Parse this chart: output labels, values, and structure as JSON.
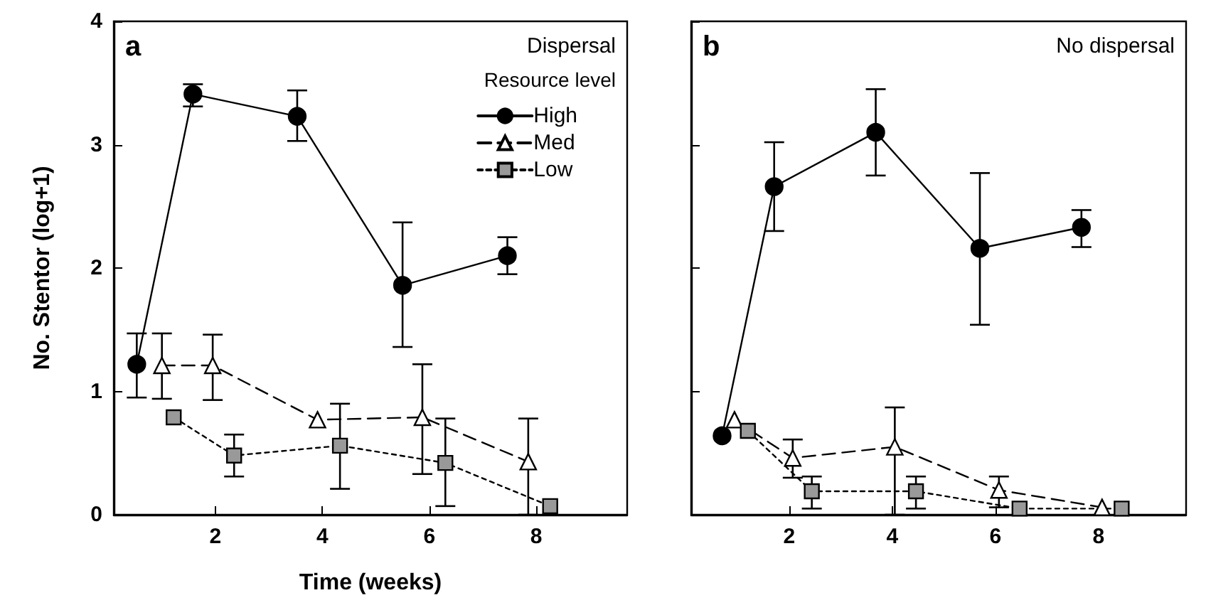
{
  "chart_data": [
    {
      "type": "line",
      "xlabel": "Time (weeks)",
      "ylabel": "No. Stentor (log+1)",
      "legend_title": "Resource level",
      "annotations": [
        "a",
        "Dispersal"
      ],
      "xlim": [
        0.1,
        9.7
      ],
      "xticks": [
        2,
        4,
        6,
        8
      ],
      "ylim": [
        0,
        4
      ],
      "yticks": [
        0,
        1,
        2,
        3,
        4
      ],
      "grid": false,
      "legend": "top right",
      "series": [
        {
          "name": "High",
          "color": "#000000",
          "marker": "circle",
          "line_style": "solid",
          "x": [
            0.53,
            1.58,
            3.53,
            5.5,
            7.46
          ],
          "values": [
            1.22,
            3.41,
            3.23,
            1.86,
            2.1
          ],
          "errors": [
            [
              0.95,
              1.47
            ],
            [
              3.31,
              3.49
            ],
            [
              3.03,
              3.44
            ],
            [
              1.36,
              2.37
            ],
            [
              1.95,
              2.25
            ]
          ]
        },
        {
          "name": "Med",
          "color": "#ffffff",
          "marker": "triangle",
          "line_style": "dashed",
          "x": [
            1.0,
            1.95,
            3.91,
            5.87,
            7.85
          ],
          "values": [
            1.21,
            1.21,
            0.77,
            0.79,
            0.43
          ],
          "errors": [
            [
              0.94,
              1.47
            ],
            [
              0.93,
              1.46
            ],
            null,
            [
              0.33,
              1.22
            ],
            [
              0,
              0.78
            ]
          ]
        },
        {
          "name": "Low",
          "color": "#999999",
          "marker": "square",
          "line_style": "dotted",
          "x": [
            1.22,
            2.35,
            4.33,
            6.3,
            8.26
          ],
          "values": [
            0.79,
            0.48,
            0.56,
            0.42,
            0.07
          ],
          "errors": [
            null,
            [
              0.31,
              0.65
            ],
            [
              0.21,
              0.9
            ],
            [
              0.07,
              0.78
            ],
            null
          ]
        }
      ]
    },
    {
      "type": "line",
      "annotations": [
        "b",
        "No dispersal"
      ],
      "xlim": [
        0.1,
        9.7
      ],
      "xticks": [
        2,
        4,
        6,
        8
      ],
      "ylim": [
        0,
        4
      ],
      "yticks": [
        0,
        1,
        2,
        3,
        4
      ],
      "tick_labels": "x",
      "grid": false,
      "legend": false,
      "series": [
        {
          "color": "#000000",
          "marker": "circle",
          "line_style": "solid",
          "x": [
            0.7,
            1.71,
            3.68,
            5.7,
            7.67
          ],
          "values": [
            0.64,
            2.66,
            3.1,
            2.16,
            2.33
          ],
          "errors": [
            null,
            [
              2.3,
              3.02
            ],
            [
              2.75,
              3.45
            ],
            [
              1.54,
              2.77
            ],
            [
              2.17,
              2.47
            ]
          ]
        },
        {
          "color": "#ffffff",
          "marker": "triangle",
          "line_style": "dashed",
          "x": [
            0.94,
            2.07,
            4.05,
            6.07,
            8.07
          ],
          "values": [
            0.77,
            0.46,
            0.55,
            0.2,
            0.06
          ],
          "errors": [
            null,
            [
              0.3,
              0.61
            ],
            [
              0,
              0.87
            ],
            [
              0.06,
              0.31
            ],
            null
          ]
        },
        {
          "color": "#999999",
          "marker": "square",
          "line_style": "dotted",
          "x": [
            1.2,
            2.44,
            4.46,
            6.47,
            8.45
          ],
          "values": [
            0.68,
            0.19,
            0.19,
            0.05,
            0.05
          ],
          "errors": [
            null,
            [
              0.05,
              0.31
            ],
            [
              0.05,
              0.31
            ],
            null,
            null
          ]
        }
      ]
    }
  ]
}
